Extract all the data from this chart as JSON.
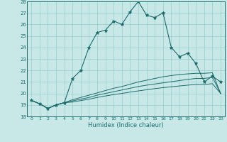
{
  "xlabel": "Humidex (Indice chaleur)",
  "xlim": [
    -0.5,
    23.5
  ],
  "ylim": [
    18,
    28
  ],
  "xticks": [
    0,
    1,
    2,
    3,
    4,
    5,
    6,
    7,
    8,
    9,
    10,
    11,
    12,
    13,
    14,
    15,
    16,
    17,
    18,
    19,
    20,
    21,
    22,
    23
  ],
  "yticks": [
    18,
    19,
    20,
    21,
    22,
    23,
    24,
    25,
    26,
    27,
    28
  ],
  "bg_color": "#c8e8e8",
  "grid_color": "#99cccc",
  "line_color": "#1a6b6b",
  "line1_x": [
    0,
    1,
    2,
    3,
    4,
    5,
    6,
    7,
    8,
    9,
    10,
    11,
    12,
    13,
    14,
    15,
    16,
    17,
    18,
    19,
    20,
    21,
    22,
    23
  ],
  "line1_y": [
    19.4,
    19.1,
    18.7,
    19.0,
    19.2,
    21.3,
    22.0,
    24.0,
    25.3,
    25.5,
    26.3,
    26.0,
    27.1,
    28.0,
    26.8,
    26.6,
    27.0,
    24.0,
    23.2,
    23.5,
    22.6,
    21.0,
    21.5,
    21.0
  ],
  "line2_x": [
    0,
    1,
    2,
    3,
    4,
    5,
    6,
    7,
    8,
    9,
    10,
    11,
    12,
    13,
    14,
    15,
    16,
    17,
    18,
    19,
    20,
    21,
    22,
    23
  ],
  "line2_y": [
    19.4,
    19.1,
    18.7,
    19.0,
    19.2,
    19.45,
    19.65,
    19.85,
    20.05,
    20.25,
    20.45,
    20.6,
    20.8,
    21.0,
    21.15,
    21.3,
    21.45,
    21.55,
    21.65,
    21.7,
    21.75,
    21.75,
    21.8,
    20.0
  ],
  "line3_x": [
    0,
    1,
    2,
    3,
    4,
    5,
    6,
    7,
    8,
    9,
    10,
    11,
    12,
    13,
    14,
    15,
    16,
    17,
    18,
    19,
    20,
    21,
    22,
    23
  ],
  "line3_y": [
    19.4,
    19.1,
    18.7,
    19.0,
    19.2,
    19.35,
    19.5,
    19.65,
    19.85,
    20.0,
    20.15,
    20.3,
    20.45,
    20.6,
    20.72,
    20.82,
    20.92,
    21.02,
    21.12,
    21.22,
    21.3,
    21.3,
    21.4,
    20.0
  ],
  "line4_x": [
    0,
    1,
    2,
    3,
    4,
    5,
    6,
    7,
    8,
    9,
    10,
    11,
    12,
    13,
    14,
    15,
    16,
    17,
    18,
    19,
    20,
    21,
    22,
    23
  ],
  "line4_y": [
    19.4,
    19.1,
    18.7,
    19.0,
    19.2,
    19.25,
    19.38,
    19.5,
    19.65,
    19.78,
    19.9,
    20.0,
    20.12,
    20.22,
    20.32,
    20.42,
    20.5,
    20.58,
    20.65,
    20.72,
    20.78,
    20.78,
    20.85,
    20.0
  ]
}
